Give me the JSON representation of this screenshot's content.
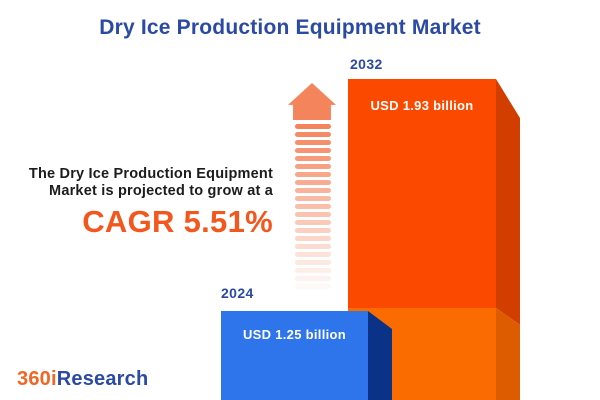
{
  "header": {
    "title": "Dry Ice Production Equipment Market"
  },
  "summary": {
    "line1": "The Dry Ice Production Equipment",
    "line2": "Market is projected to grow at a",
    "cagr": "CAGR 5.51%"
  },
  "chart_data": {
    "type": "bar",
    "title": "Dry Ice Production Equipment Market",
    "categories": [
      "2024",
      "2032"
    ],
    "values": [
      1.25,
      1.93
    ],
    "unit": "USD billion",
    "cagr_percent": 5.51,
    "legend": "none",
    "bars": [
      {
        "year": "2024",
        "label": "USD 1.25 billion",
        "value_usd_billion": 1.25,
        "front_color": "#2E74EA",
        "side_color": "#0A3387"
      },
      {
        "year": "2032",
        "label": "USD 1.93 billion",
        "value_usd_billion": 1.93,
        "front_color": "#FB4900",
        "side_color": "#D23E00",
        "lower_band_color": "#FA6C00",
        "lower_band_side_color": "#DE5C00"
      }
    ]
  },
  "branding": {
    "logo_orange": "360i",
    "logo_blue": "Research"
  },
  "colors": {
    "title_blue": "#2B4AA3",
    "body_text": "#1c1c1c",
    "cagr_orange": "#F4571D",
    "arrow_orange": "#F4845C",
    "background": "#ffffff"
  }
}
